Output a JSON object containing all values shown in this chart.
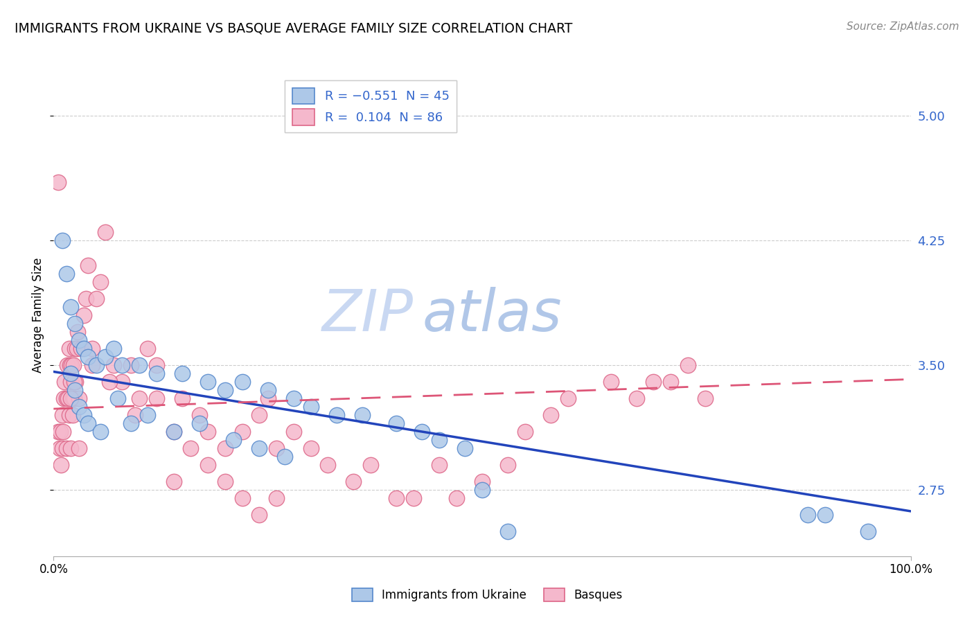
{
  "title": "IMMIGRANTS FROM UKRAINE VS BASQUE AVERAGE FAMILY SIZE CORRELATION CHART",
  "source": "Source: ZipAtlas.com",
  "ylabel": "Average Family Size",
  "y_ticks": [
    2.75,
    3.5,
    4.25,
    5.0
  ],
  "xlim": [
    0.0,
    100.0
  ],
  "ylim": [
    2.35,
    5.25
  ],
  "ukraine_color": "#adc8e8",
  "ukraine_edge": "#5588cc",
  "basque_color": "#f5b8cc",
  "basque_edge": "#dd6688",
  "ukraine_line_color": "#2244bb",
  "basque_line_color": "#dd5577",
  "ukraine_R": -0.551,
  "ukraine_N": 45,
  "basque_R": 0.104,
  "basque_N": 86,
  "watermark_top": "ZIP",
  "watermark_bottom": "atlas",
  "watermark_color": "#c5d8f0",
  "ukraine_x": [
    1.0,
    1.5,
    2.0,
    2.5,
    3.0,
    3.5,
    4.0,
    5.0,
    6.0,
    7.0,
    8.0,
    10.0,
    12.0,
    15.0,
    18.0,
    20.0,
    22.0,
    25.0,
    28.0,
    30.0,
    33.0,
    36.0,
    40.0,
    43.0,
    45.0,
    48.0,
    50.0,
    88.0,
    90.0,
    2.0,
    2.5,
    3.0,
    3.5,
    4.0,
    5.5,
    7.5,
    9.0,
    11.0,
    14.0,
    17.0,
    21.0,
    24.0,
    27.0,
    53.0,
    95.0
  ],
  "ukraine_y": [
    4.25,
    4.05,
    3.85,
    3.75,
    3.65,
    3.6,
    3.55,
    3.5,
    3.55,
    3.6,
    3.5,
    3.5,
    3.45,
    3.45,
    3.4,
    3.35,
    3.4,
    3.35,
    3.3,
    3.25,
    3.2,
    3.2,
    3.15,
    3.1,
    3.05,
    3.0,
    2.75,
    2.6,
    2.6,
    3.45,
    3.35,
    3.25,
    3.2,
    3.15,
    3.1,
    3.3,
    3.15,
    3.2,
    3.1,
    3.15,
    3.05,
    3.0,
    2.95,
    2.5,
    2.5
  ],
  "basque_x": [
    0.5,
    0.5,
    0.7,
    0.8,
    0.9,
    1.0,
    1.0,
    1.1,
    1.2,
    1.3,
    1.5,
    1.5,
    1.6,
    1.7,
    1.8,
    1.8,
    1.9,
    2.0,
    2.0,
    2.1,
    2.2,
    2.3,
    2.4,
    2.5,
    2.6,
    2.7,
    2.8,
    3.0,
    3.2,
    3.5,
    3.8,
    4.0,
    4.5,
    5.0,
    5.5,
    6.0,
    7.0,
    8.0,
    9.0,
    10.0,
    11.0,
    12.0,
    14.0,
    15.0,
    17.0,
    18.0,
    20.0,
    22.0,
    24.0,
    25.0,
    26.0,
    28.0,
    30.0,
    32.0,
    35.0,
    37.0,
    40.0,
    42.0,
    45.0,
    47.0,
    50.0,
    53.0,
    55.0,
    58.0,
    60.0,
    65.0,
    68.0,
    70.0,
    72.0,
    74.0,
    76.0,
    2.0,
    2.2,
    2.4,
    3.0,
    4.5,
    6.5,
    9.5,
    12.0,
    14.0,
    16.0,
    18.0,
    20.0,
    22.0,
    24.0,
    26.0
  ],
  "basque_y": [
    4.6,
    3.1,
    3.0,
    3.1,
    2.9,
    3.0,
    3.2,
    3.1,
    3.3,
    3.4,
    3.3,
    3.0,
    3.5,
    3.3,
    3.6,
    3.2,
    3.5,
    3.4,
    3.0,
    3.5,
    3.3,
    3.5,
    3.3,
    3.6,
    3.4,
    3.6,
    3.7,
    3.3,
    3.6,
    3.8,
    3.9,
    4.1,
    3.5,
    3.9,
    4.0,
    4.3,
    3.5,
    3.4,
    3.5,
    3.3,
    3.6,
    3.5,
    3.1,
    3.3,
    3.2,
    3.1,
    3.0,
    3.1,
    3.2,
    3.3,
    3.0,
    3.1,
    3.0,
    2.9,
    2.8,
    2.9,
    2.7,
    2.7,
    2.9,
    2.7,
    2.8,
    2.9,
    3.1,
    3.2,
    3.3,
    3.4,
    3.3,
    3.4,
    3.4,
    3.5,
    3.3,
    3.3,
    3.2,
    3.4,
    3.0,
    3.6,
    3.4,
    3.2,
    3.3,
    2.8,
    3.0,
    2.9,
    2.8,
    2.7,
    2.6,
    2.7
  ]
}
